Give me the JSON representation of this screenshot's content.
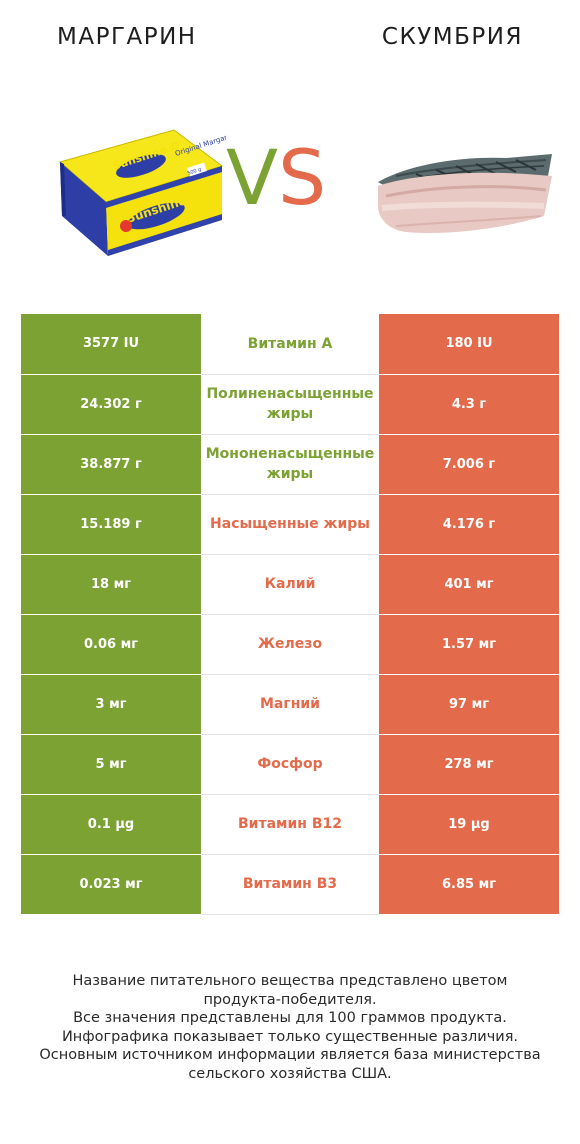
{
  "header": {
    "left_title": "МАРГАРИН",
    "right_title": "СКУМБРИЯ",
    "vs_v": "V",
    "vs_s": "S"
  },
  "images": {
    "left": {
      "name": "margarine-image",
      "brand_text": "Sunshine D",
      "subtitle": "Original Margarine",
      "weight": "500 g"
    },
    "right": {
      "name": "mackerel-fillet-image"
    }
  },
  "colors": {
    "left_win": "#7ba233",
    "right_win": "#e36b4b"
  },
  "rows": [
    {
      "left": "3577 IU",
      "name": "Витамин A",
      "right": "180 IU",
      "winner": "left"
    },
    {
      "left": "24.302 г",
      "name": "Полиненасыщенные жиры",
      "right": "4.3 г",
      "winner": "left"
    },
    {
      "left": "38.877 г",
      "name": "Мононенасыщенные жиры",
      "right": "7.006 г",
      "winner": "left"
    },
    {
      "left": "15.189 г",
      "name": "Насыщенные жиры",
      "right": "4.176 г",
      "winner": "right"
    },
    {
      "left": "18 мг",
      "name": "Калий",
      "right": "401 мг",
      "winner": "right"
    },
    {
      "left": "0.06 мг",
      "name": "Железо",
      "right": "1.57 мг",
      "winner": "right"
    },
    {
      "left": "3 мг",
      "name": "Магний",
      "right": "97 мг",
      "winner": "right"
    },
    {
      "left": "5 мг",
      "name": "Фосфор",
      "right": "278 мг",
      "winner": "right"
    },
    {
      "left": "0.1 µg",
      "name": "Витамин B12",
      "right": "19 µg",
      "winner": "right"
    },
    {
      "left": "0.023 мг",
      "name": "Витамин B3",
      "right": "6.85 мг",
      "winner": "right"
    }
  ],
  "footer": [
    "Название питательного вещества представлено цветом",
    "продукта-победителя.",
    "Все значения представлены для 100 граммов продукта.",
    "Инфографика показывает только существенные различия.",
    "Основным источником информации является база министерства",
    "сельского хозяйства США."
  ]
}
